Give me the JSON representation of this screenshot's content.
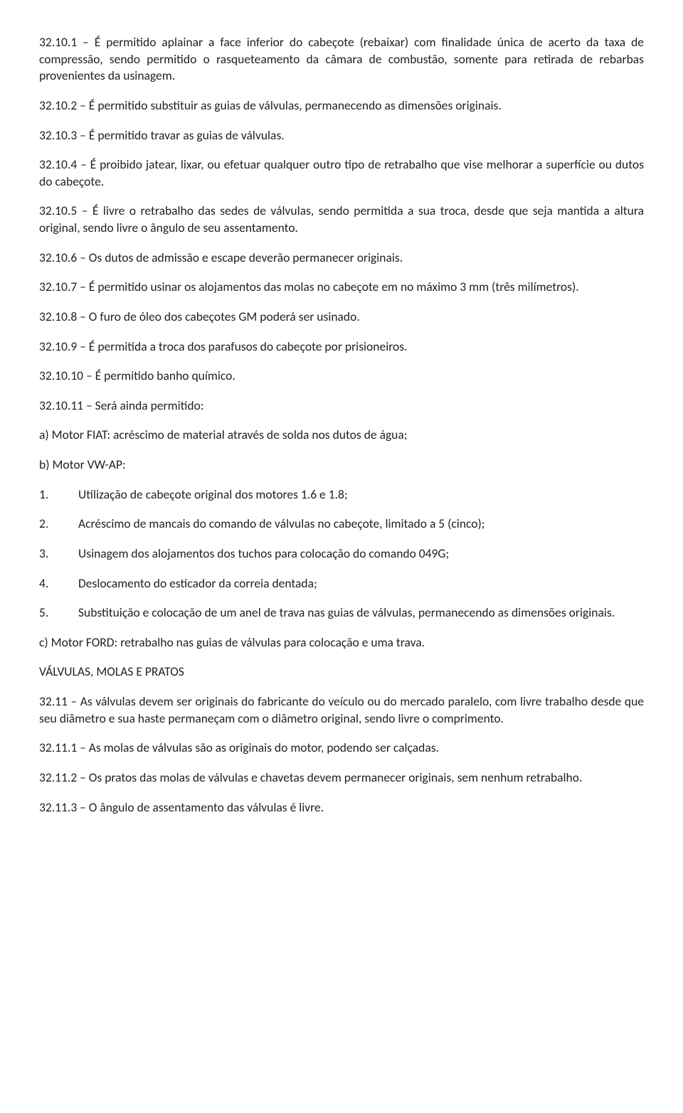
{
  "p1": "32.10.1 – É permitido aplainar a face inferior do cabeçote (rebaixar) com finalidade única de acerto da taxa de compressão, sendo permitido o rasqueteamento da câmara de combustão, somente para retirada de rebarbas provenientes da usinagem.",
  "p2": "32.10.2 – É permitido substituir as guias de válvulas, permanecendo as dimensões originais.",
  "p3": "32.10.3 – É permitido travar as guias de válvulas.",
  "p4": "32.10.4 – É proibido jatear, lixar, ou efetuar qualquer outro tipo de retrabalho que vise melhorar a superfície ou dutos do cabeçote.",
  "p5": "32.10.5 – É livre o retrabalho das sedes de válvulas, sendo permitida a sua troca, desde que seja mantida a altura original, sendo livre o ângulo de seu assentamento.",
  "p6": "32.10.6 – Os dutos de admissão e escape deverão permanecer originais.",
  "p7": "32.10.7 – É permitido usinar os alojamentos das molas no cabeçote em no máximo 3 mm (três milímetros).",
  "p8": "32.10.8 – O furo de óleo dos cabeçotes GM poderá ser usinado.",
  "p9": "32.10.9 – É permitida a troca dos parafusos do cabeçote por prisioneiros.",
  "p10": "32.10.10 – É permitido banho químico.",
  "p11": "32.10.11 – Será ainda permitido:",
  "pa": "a) Motor FIAT: acréscimo de material através de solda nos dutos de água;",
  "pb": "b) Motor VW-AP:",
  "list": [
    {
      "n": "1.",
      "t": "Utilização de cabeçote original dos motores 1.6 e 1.8;"
    },
    {
      "n": "2.",
      "t": "Acréscimo de mancais do comando de válvulas no cabeçote, limitado a 5 (cinco);"
    },
    {
      "n": "3.",
      "t": "Usinagem dos alojamentos dos tuchos para colocação do comando 049G;"
    },
    {
      "n": "4.",
      "t": "Deslocamento do esticador da correia dentada;"
    },
    {
      "n": "5.",
      "t": "Substituição e colocação de um anel de trava nas guias de válvulas, permanecendo as dimensões originais."
    }
  ],
  "pc": "c) Motor FORD: retrabalho nas guias de válvulas para colocação e uma trava.",
  "sec": "VÁLVULAS, MOLAS E PRATOS",
  "p12": "32.11 – As válvulas devem ser originais do fabricante do veículo ou do mercado paralelo, com livre trabalho desde que seu diâmetro e sua haste permaneçam com o diâmetro original, sendo livre o comprimento.",
  "p13": "32.11.1 – As molas de válvulas são as originais do motor, podendo ser calçadas.",
  "p14": "32.11.2 – Os pratos das molas de válvulas e chavetas devem permanecer originais, sem nenhum retrabalho.",
  "p15": "32.11.3 – O ângulo de assentamento das válvulas é livre."
}
